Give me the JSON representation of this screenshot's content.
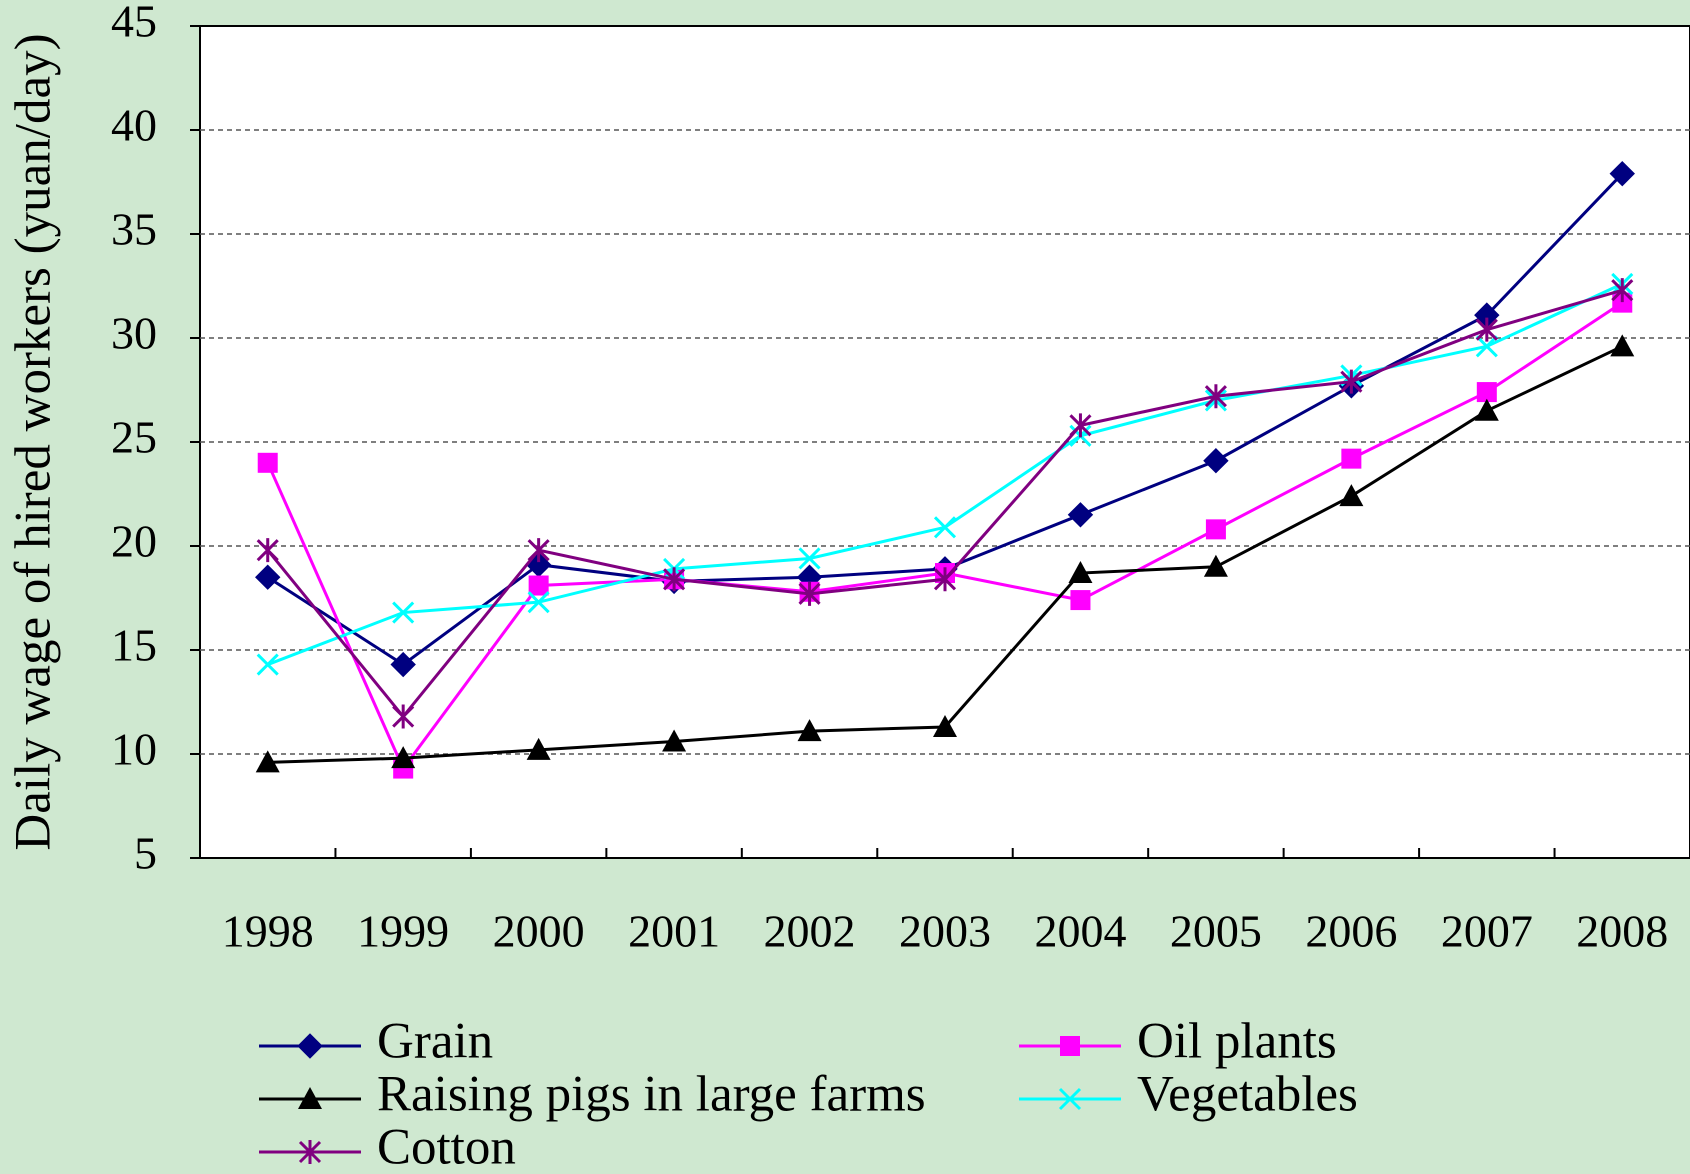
{
  "chart_data": {
    "type": "line",
    "y_label": "Daily wage of hired workers (yuan/day)",
    "categories": [
      "1998",
      "1999",
      "2000",
      "2001",
      "2002",
      "2003",
      "2004",
      "2005",
      "2006",
      "2007",
      "2008"
    ],
    "series": [
      {
        "name": "Grain",
        "color": "#000080",
        "marker": "diamond",
        "values": [
          18.5,
          14.3,
          19.1,
          18.3,
          18.5,
          18.9,
          21.5,
          24.1,
          27.7,
          31.1,
          37.9
        ]
      },
      {
        "name": "Oil plants",
        "color": "#ff00ff",
        "marker": "square",
        "values": [
          24.0,
          9.3,
          18.1,
          18.4,
          17.8,
          18.7,
          17.4,
          20.8,
          24.2,
          27.4,
          31.7
        ]
      },
      {
        "name": "Raising pigs in large farms",
        "color": "#000000",
        "marker": "triangle",
        "values": [
          9.6,
          9.8,
          10.2,
          10.6,
          11.1,
          11.3,
          18.7,
          19.0,
          22.4,
          26.5,
          29.6
        ]
      },
      {
        "name": "Vegetables",
        "color": "#00ffff",
        "marker": "x",
        "values": [
          14.3,
          16.8,
          17.3,
          18.9,
          19.4,
          20.9,
          25.3,
          27.0,
          28.2,
          29.6,
          32.6
        ]
      },
      {
        "name": "Cotton",
        "color": "#800080",
        "marker": "asterisk",
        "values": [
          19.8,
          11.8,
          19.8,
          18.4,
          17.7,
          18.4,
          25.8,
          27.2,
          27.9,
          30.4,
          32.3
        ]
      }
    ],
    "ylim": [
      5,
      45
    ],
    "yticks": [
      5,
      10,
      15,
      20,
      25,
      30,
      35,
      40,
      45
    ],
    "grid": true
  }
}
